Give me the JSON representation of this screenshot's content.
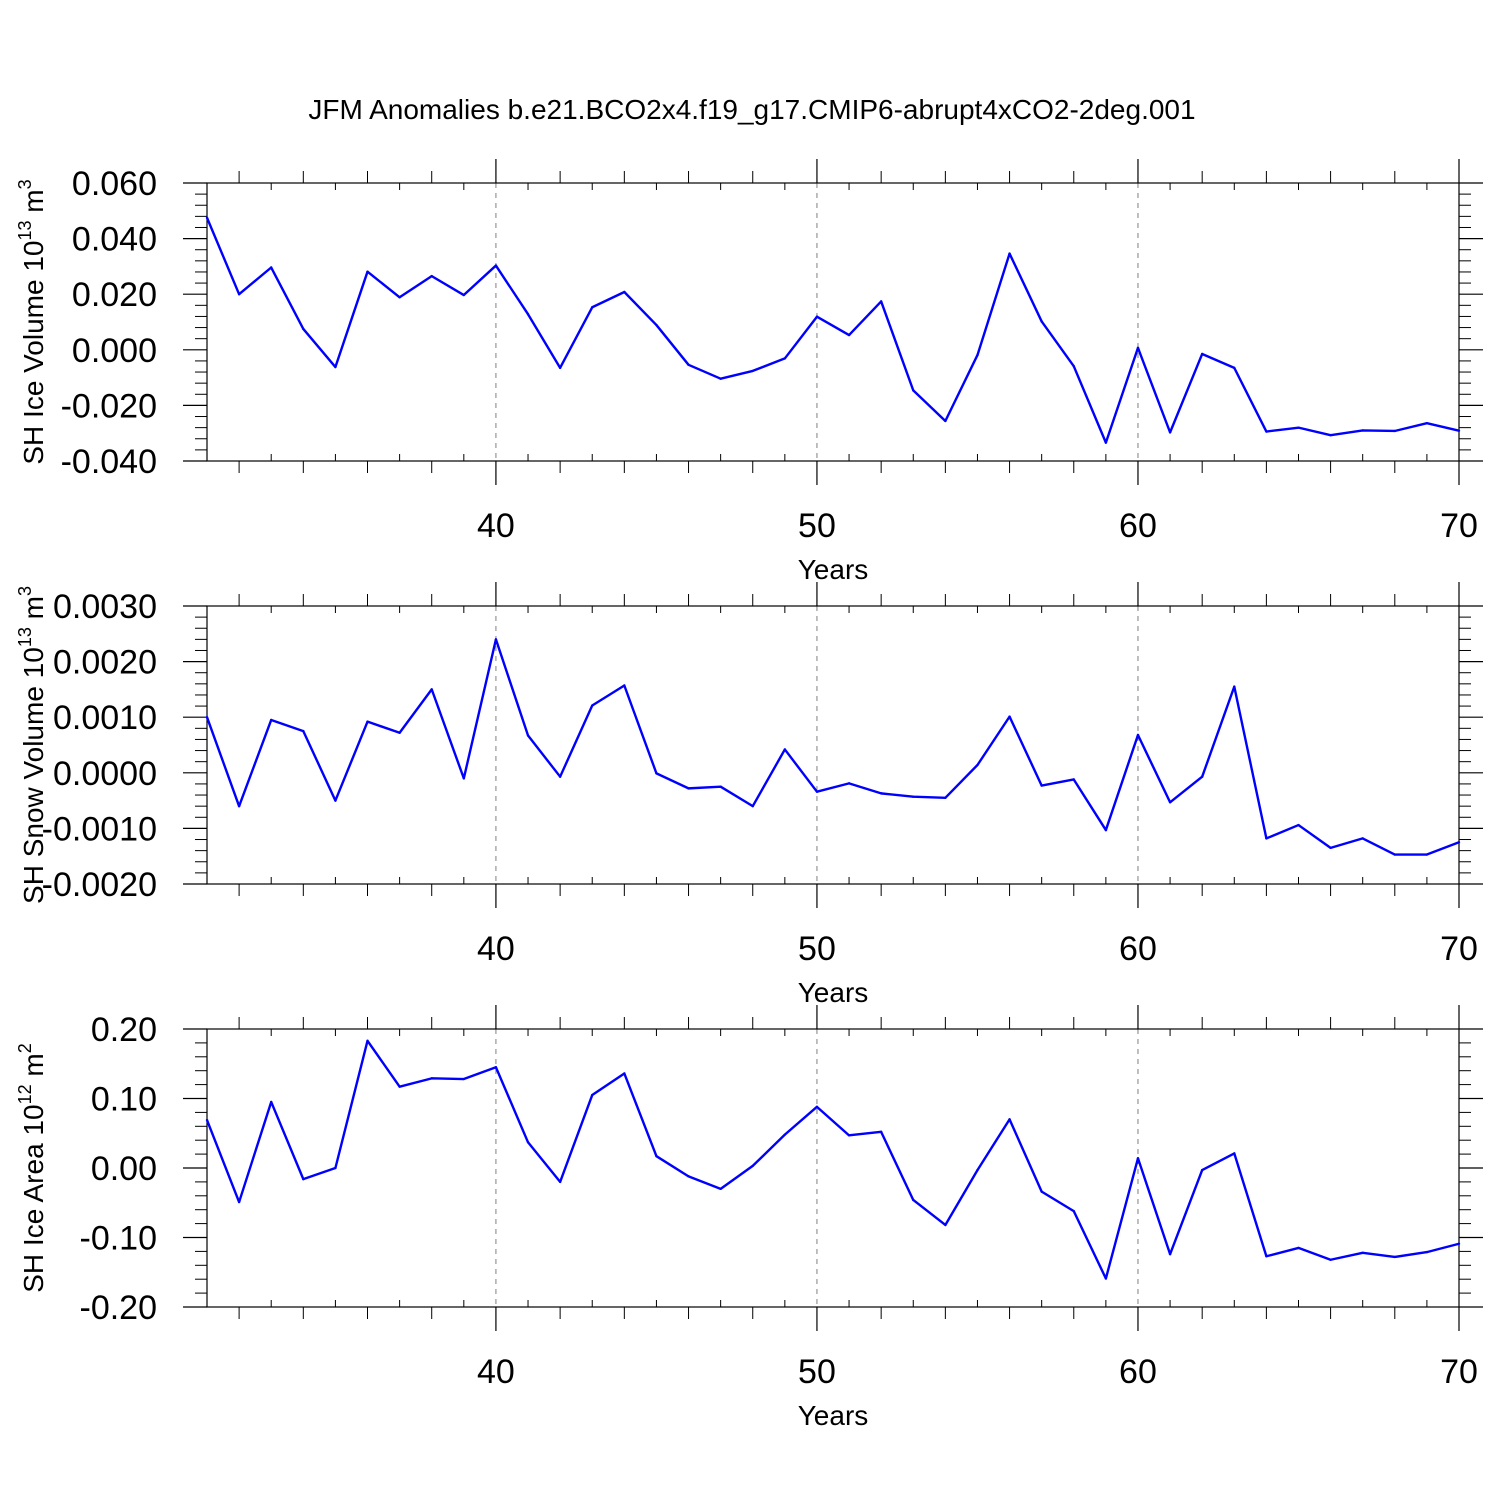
{
  "figure_title": "JFM Anomalies b.e21.BCO2x4.f19_g17.CMIP6-abrupt4xCO2-2deg.001",
  "colors": {
    "line": "#0000ff",
    "axis": "#000000",
    "grid": "#808080"
  },
  "chart_data": [
    {
      "type": "line",
      "title": "",
      "xlabel": "Years",
      "ylabel": {
        "base": "SH Ice Volume 10",
        "exp": "13",
        "unit": " m",
        "unit_exp": "3"
      },
      "xlim": [
        31,
        70
      ],
      "ylim": [
        -0.04,
        0.06
      ],
      "xticks": [
        40,
        50,
        60,
        70
      ],
      "xtick_labels": [
        "40",
        "50",
        "60",
        "70"
      ],
      "yticks": [
        -0.04,
        -0.02,
        0.0,
        0.02,
        0.04,
        0.06
      ],
      "ytick_labels": [
        "-0.040",
        "-0.020",
        "0.000",
        "0.020",
        "0.040",
        "0.060"
      ],
      "grid": "vertical dashed at major x ticks",
      "series": [
        {
          "x": [
            31,
            32,
            33,
            34,
            35,
            36,
            37,
            38,
            39,
            40,
            41,
            42,
            43,
            44,
            45,
            46,
            47,
            48,
            49,
            50,
            51,
            52,
            53,
            54,
            55,
            56,
            57,
            58,
            59,
            60,
            61,
            62,
            63,
            64,
            65,
            66,
            67,
            68,
            69,
            70
          ],
          "values": [
            0.0475,
            0.02,
            0.0296,
            0.0075,
            -0.0062,
            0.0281,
            0.0189,
            0.0265,
            0.0197,
            0.0303,
            0.0128,
            -0.0065,
            0.0153,
            0.0208,
            0.0089,
            -0.0054,
            -0.0104,
            -0.0076,
            -0.0031,
            0.0119,
            0.0053,
            0.0174,
            -0.0146,
            -0.0256,
            -0.0019,
            0.0346,
            0.0102,
            -0.0059,
            -0.0334,
            0.0007,
            -0.0297,
            -0.0015,
            -0.0065,
            -0.0294,
            -0.028,
            -0.0307,
            -0.029,
            -0.0292,
            -0.0264,
            -0.0291
          ]
        }
      ]
    },
    {
      "type": "line",
      "title": "",
      "xlabel": "Years",
      "ylabel": {
        "base": "SH Snow Volume 10",
        "exp": "13",
        "unit": " m",
        "unit_exp": "3"
      },
      "xlim": [
        31,
        70
      ],
      "ylim": [
        -0.002,
        0.003
      ],
      "xticks": [
        40,
        50,
        60,
        70
      ],
      "xtick_labels": [
        "40",
        "50",
        "60",
        "70"
      ],
      "yticks": [
        -0.002,
        -0.001,
        0.0,
        0.001,
        0.002,
        0.003
      ],
      "ytick_labels": [
        "-0.0020",
        "-0.0010",
        "0.0000",
        "0.0010",
        "0.0020",
        "0.0030"
      ],
      "grid": "vertical dashed at major x ticks",
      "series": [
        {
          "x": [
            31,
            32,
            33,
            34,
            35,
            36,
            37,
            38,
            39,
            40,
            41,
            42,
            43,
            44,
            45,
            46,
            47,
            48,
            49,
            50,
            51,
            52,
            53,
            54,
            55,
            56,
            57,
            58,
            59,
            60,
            61,
            62,
            63,
            64,
            65,
            66,
            67,
            68,
            69,
            70
          ],
          "values": [
            0.001,
            -0.0006,
            0.00095,
            0.00075,
            -0.0005,
            0.00092,
            0.00072,
            0.0015,
            -0.0001,
            0.0024,
            0.00067,
            -7e-05,
            0.00121,
            0.00157,
            -1e-05,
            -0.00028,
            -0.00025,
            -0.0006,
            0.00042,
            -0.00034,
            -0.00019,
            -0.00037,
            -0.00043,
            -0.00045,
            0.00014,
            0.00101,
            -0.00023,
            -0.00012,
            -0.00103,
            0.00068,
            -0.00053,
            -7e-05,
            0.00155,
            -0.00118,
            -0.00094,
            -0.00135,
            -0.00118,
            -0.00147,
            -0.00147,
            -0.00125
          ]
        }
      ]
    },
    {
      "type": "line",
      "title": "",
      "xlabel": "Years",
      "ylabel": {
        "base": "SH Ice Area 10",
        "exp": "12",
        "unit": " m",
        "unit_exp": "2"
      },
      "xlim": [
        31,
        70
      ],
      "ylim": [
        -0.2,
        0.2
      ],
      "xticks": [
        40,
        50,
        60,
        70
      ],
      "xtick_labels": [
        "40",
        "50",
        "60",
        "70"
      ],
      "yticks": [
        -0.2,
        -0.1,
        0.0,
        0.1,
        0.2
      ],
      "ytick_labels": [
        "-0.20",
        "-0.10",
        "0.00",
        "0.10",
        "0.20"
      ],
      "grid": "vertical dashed at major x ticks",
      "series": [
        {
          "x": [
            31,
            32,
            33,
            34,
            35,
            36,
            37,
            38,
            39,
            40,
            41,
            42,
            43,
            44,
            45,
            46,
            47,
            48,
            49,
            50,
            51,
            52,
            53,
            54,
            55,
            56,
            57,
            58,
            59,
            60,
            61,
            62,
            63,
            64,
            65,
            66,
            67,
            68,
            69,
            70
          ],
          "values": [
            0.069,
            -0.049,
            0.095,
            -0.016,
            0.0,
            0.183,
            0.117,
            0.129,
            0.128,
            0.145,
            0.037,
            -0.02,
            0.105,
            0.136,
            0.017,
            -0.012,
            -0.03,
            0.003,
            0.048,
            0.088,
            0.047,
            0.052,
            -0.046,
            -0.082,
            -0.003,
            0.07,
            -0.034,
            -0.062,
            -0.159,
            0.014,
            -0.124,
            -0.003,
            0.021,
            -0.127,
            -0.115,
            -0.132,
            -0.122,
            -0.128,
            -0.121,
            -0.109
          ]
        }
      ]
    }
  ]
}
